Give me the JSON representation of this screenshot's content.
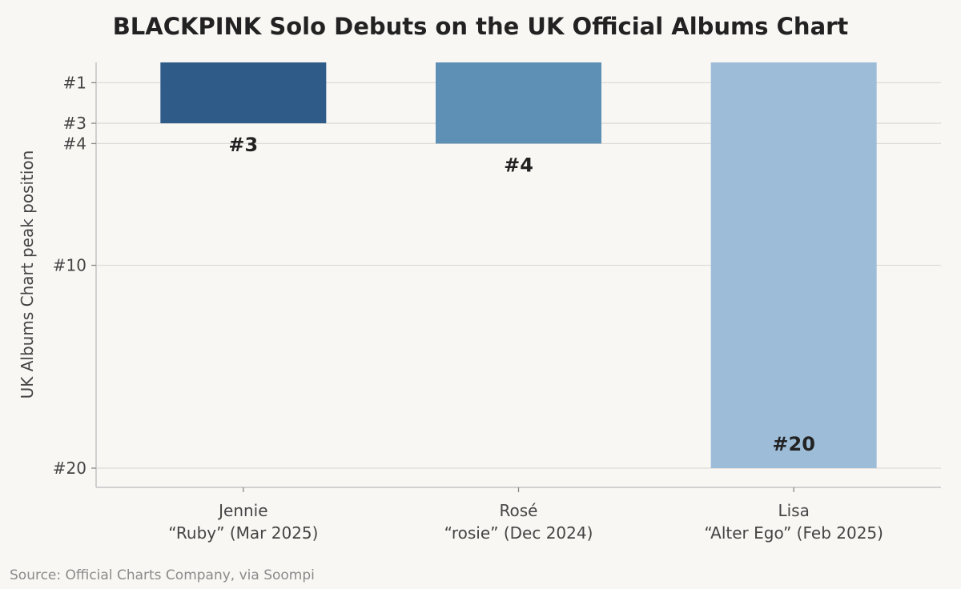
{
  "chart_data": {
    "type": "bar",
    "title": "BLACKPINK Solo Debuts on the UK Official Albums Chart",
    "ylabel": "UK Albums Chart peak position",
    "xlabel": "",
    "y_inverted": true,
    "ylim": [
      0,
      21
    ],
    "yticks": [
      1,
      3,
      4,
      10,
      20
    ],
    "ytick_labels": [
      "#1",
      "#3",
      "#4",
      "#10",
      "#20"
    ],
    "grid": "horizontal",
    "categories": [
      {
        "artist": "Jennie",
        "album": "“Ruby” (Mar 2025)"
      },
      {
        "artist": "Rosé",
        "album": "“rosie” (Dec 2024)"
      },
      {
        "artist": "Lisa",
        "album": "“Alter Ego” (Feb 2025)"
      }
    ],
    "values": [
      3,
      4,
      20
    ],
    "value_labels": [
      "#3",
      "#4",
      "#20"
    ],
    "colors": [
      "#2f5b89",
      "#5e90b6",
      "#9dbcd8"
    ]
  },
  "source": "Source: Official Charts Company, via Soompi"
}
